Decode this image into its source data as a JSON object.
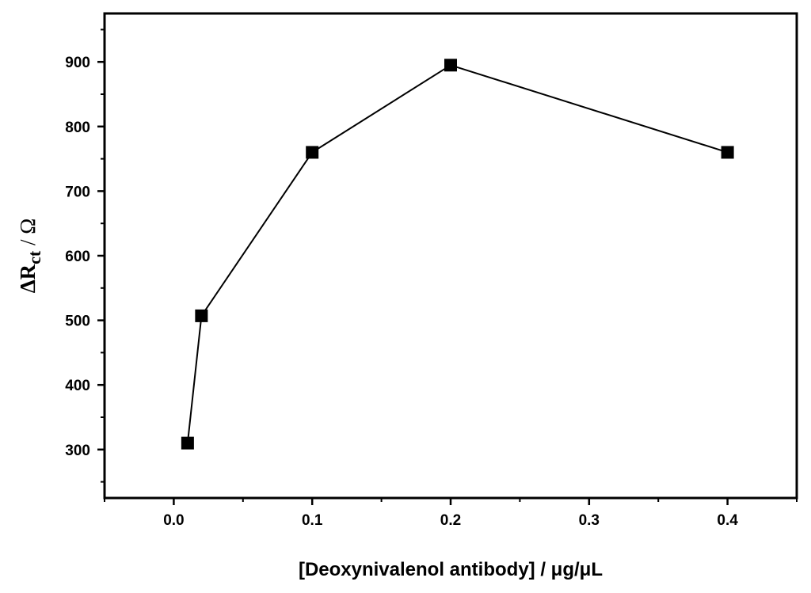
{
  "chart_data": {
    "type": "line",
    "xlabel": "[Deoxynivalenol antibody] / μg/μL",
    "ylabel": {
      "prefix": "ΔR",
      "subscript": "ct",
      "suffix": " / Ω"
    },
    "xlim": [
      -0.05,
      0.45
    ],
    "ylim": [
      225,
      975
    ],
    "x_ticks": [
      0.0,
      0.1,
      0.2,
      0.3,
      0.4
    ],
    "x_tick_labels": [
      "0.0",
      "0.1",
      "0.2",
      "0.3",
      "0.4"
    ],
    "y_ticks": [
      300,
      400,
      500,
      600,
      700,
      800,
      900
    ],
    "y_tick_labels": [
      "300",
      "400",
      "500",
      "600",
      "700",
      "800",
      "900"
    ],
    "x_minor_ticks": [
      -0.05,
      0.05,
      0.15,
      0.25,
      0.35,
      0.45
    ],
    "y_minor_ticks": [
      250,
      350,
      450,
      550,
      650,
      750,
      850,
      950
    ],
    "marker": "square",
    "series": [
      {
        "x": [
          0.01,
          0.02,
          0.1,
          0.2,
          0.4
        ],
        "y": [
          310,
          507,
          760,
          895,
          760
        ],
        "color": "#000000"
      }
    ],
    "legend": "none",
    "grid": false
  }
}
